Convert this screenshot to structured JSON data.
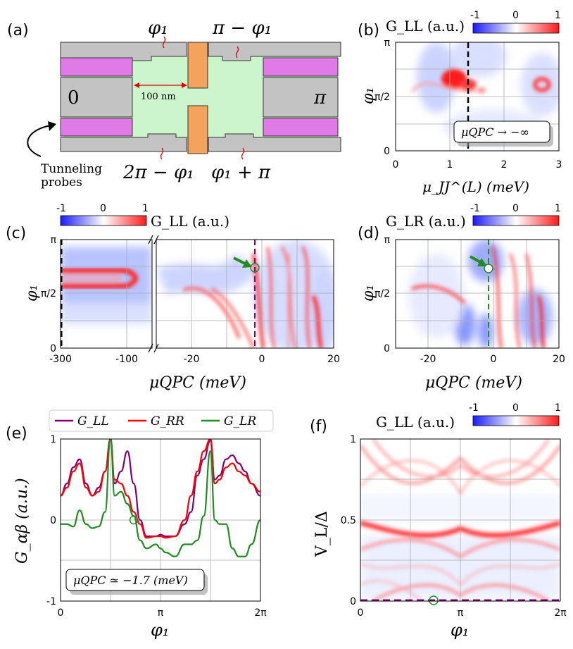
{
  "panels": {
    "a": {
      "label": "(a)",
      "phases": [
        "φ₁",
        "π − φ₁",
        "2π − φ₁",
        "φ₁ + π"
      ],
      "lead_left": "0",
      "lead_right": "π",
      "scale": "100 nm",
      "probes_line1": "Tunneling",
      "probes_line2": "probes",
      "colors": {
        "lead": "#c3c3c3",
        "sc": "#e07ae7",
        "normal": "#ccf5cc",
        "gate": "#f4a35c"
      }
    },
    "b": {
      "label": "(b)",
      "colorbar_label": "G_LL (a.u.)",
      "annotation": "μQPC → −∞"
    },
    "c": {
      "label": "(c)",
      "colorbar_label": "G_LL (a.u.)"
    },
    "d": {
      "label": "(d)",
      "colorbar_label": "G_LR (a.u.)"
    },
    "e": {
      "label": "(e)",
      "annotation": "μQPC ≃ −1.7 (meV)"
    },
    "f": {
      "label": "(f)",
      "colorbar_label": "G_LL (a.u.)"
    }
  },
  "colorbar": {
    "ticks": [
      "-1",
      "0",
      "1"
    ],
    "colors": [
      "#0000ff",
      "#ffffff",
      "#ff0000"
    ]
  },
  "chart_data": [
    {
      "id": "b",
      "type": "heatmap",
      "xlabel": "μ_JJ^(L) (meV)",
      "ylabel": "φ₁",
      "xlim": [
        0,
        3
      ],
      "ylim": [
        0,
        3.1416
      ],
      "xticks": [
        "0",
        "1",
        "2",
        "3"
      ],
      "yticks": [
        "0",
        "π/2",
        "π"
      ],
      "grid": true,
      "marker_line": {
        "x": 1.33,
        "color": "#000000",
        "style": "dashed"
      }
    },
    {
      "id": "c",
      "type": "heatmap",
      "broken_x_axis": true,
      "xlabel": "μQPC (meV)",
      "ylabel": "φ₁",
      "xticks": [
        "-300",
        "-100",
        "-20",
        "0",
        "20"
      ],
      "yticks": [
        "0",
        "π/2",
        "π"
      ],
      "grid": true,
      "marker_line": {
        "x": -1.7,
        "color": "#800080",
        "style": "dashed"
      },
      "marker_point": {
        "x": -1.7,
        "y": 2.33,
        "color": "#228b22"
      }
    },
    {
      "id": "d",
      "type": "heatmap",
      "xlabel": "μQPC (meV)",
      "ylabel": "φ₁",
      "xlim": [
        -30,
        20
      ],
      "ylim": [
        0,
        3.1416
      ],
      "xticks": [
        "-20",
        "0",
        "20"
      ],
      "yticks": [
        "0",
        "π/2",
        "π"
      ],
      "grid": true,
      "marker_line": {
        "x": -1.7,
        "color": "#228b22",
        "style": "dashed"
      },
      "marker_point": {
        "x": -1.7,
        "y": 2.33,
        "color": "#228b22"
      }
    },
    {
      "id": "e",
      "type": "line",
      "xlabel": "φ₁",
      "ylabel": "G_αβ (a.u.)",
      "xlim": [
        0,
        6.2832
      ],
      "ylim": [
        -1,
        1
      ],
      "xticks": [
        "0",
        "π",
        "2π"
      ],
      "yticks": [
        "-1",
        "0",
        "1"
      ],
      "grid": true,
      "legend": "top",
      "x": [
        0,
        0.2,
        0.4,
        0.6,
        0.8,
        1.0,
        1.2,
        1.4,
        1.57,
        1.7,
        1.9,
        2.1,
        2.3,
        2.5,
        2.7,
        3.0,
        3.1416,
        3.3,
        3.6,
        3.9,
        4.1,
        4.3,
        4.5,
        4.71,
        4.85,
        5.0,
        5.2,
        5.4,
        5.6,
        5.8,
        6.0,
        6.2832
      ],
      "series": [
        {
          "name": "G_LL",
          "color": "#800080",
          "values": [
            0.3,
            0.45,
            0.65,
            0.75,
            0.45,
            0.3,
            0.4,
            0.6,
            1.0,
            0.45,
            0.6,
            0.85,
            0.45,
            0.0,
            -0.2,
            -0.2,
            -0.18,
            -0.2,
            -0.2,
            -0.05,
            0.1,
            0.55,
            0.75,
            0.98,
            0.5,
            0.55,
            0.75,
            0.8,
            0.7,
            0.6,
            0.45,
            0.3
          ]
        },
        {
          "name": "G_RR",
          "color": "#ff0000",
          "values": [
            0.3,
            0.4,
            0.6,
            0.7,
            0.4,
            0.3,
            0.35,
            0.6,
            1.0,
            0.5,
            0.45,
            0.3,
            0.1,
            -0.05,
            -0.22,
            -0.2,
            -0.2,
            -0.22,
            -0.2,
            0.0,
            0.3,
            0.6,
            0.85,
            1.0,
            0.45,
            0.5,
            0.65,
            0.7,
            0.6,
            0.55,
            0.45,
            0.35
          ]
        },
        {
          "name": "G_LR",
          "color": "#228b22",
          "values": [
            -0.05,
            -0.05,
            -0.08,
            0.12,
            -0.05,
            -0.1,
            -0.08,
            0.1,
            1.0,
            0.3,
            0.35,
            0.2,
            0.05,
            -0.25,
            -0.35,
            -0.3,
            -0.35,
            -0.4,
            -0.45,
            -0.3,
            -0.3,
            -0.25,
            0.05,
            0.85,
            0.0,
            -0.05,
            -0.05,
            -0.35,
            -0.45,
            -0.45,
            -0.3,
            0.0
          ]
        }
      ],
      "marker_point": {
        "x": 2.3,
        "y": 0.0,
        "color": "#228b22"
      }
    },
    {
      "id": "f",
      "type": "heatmap",
      "xlabel": "φ₁",
      "ylabel": "V_L/Δ",
      "xlim": [
        0,
        6.2832
      ],
      "ylim": [
        0,
        1
      ],
      "xticks": [
        "0",
        "π",
        "2π"
      ],
      "yticks": [
        "0",
        "0.5",
        "1"
      ],
      "grid": true,
      "marker_point": {
        "x": 2.3,
        "y": 0.0,
        "color": "#228b22"
      },
      "baseline": {
        "y": 0,
        "color": "#800080",
        "style": "dashed"
      }
    }
  ]
}
